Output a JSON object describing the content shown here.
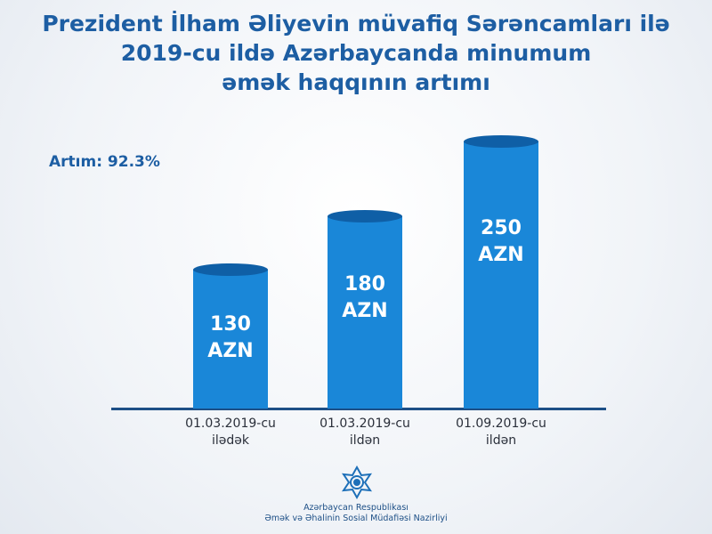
{
  "chart_data": {
    "type": "bar",
    "title": "Prezident İlham Əliyevin müvafiq Sərəncamları ilə\n2019-cu ildə Azərbaycanda minumum\nəmək haqqının artımı",
    "annotation": "Artım: 92.3%",
    "categories": [
      "01.03.2019-cu\nilədək",
      "01.03.2019-cu\nildən",
      "01.09.2019-cu\nildən"
    ],
    "values": [
      130,
      180,
      250
    ],
    "value_labels": [
      "130\nAZN",
      "180\nAZN",
      "250\nAZN"
    ],
    "color": "#1a87d8",
    "source_lines": [
      "Azərbaycan Respublikası",
      "Əmək və Əhalinin Sosial Müdafiəsi Nazirliyi"
    ]
  }
}
